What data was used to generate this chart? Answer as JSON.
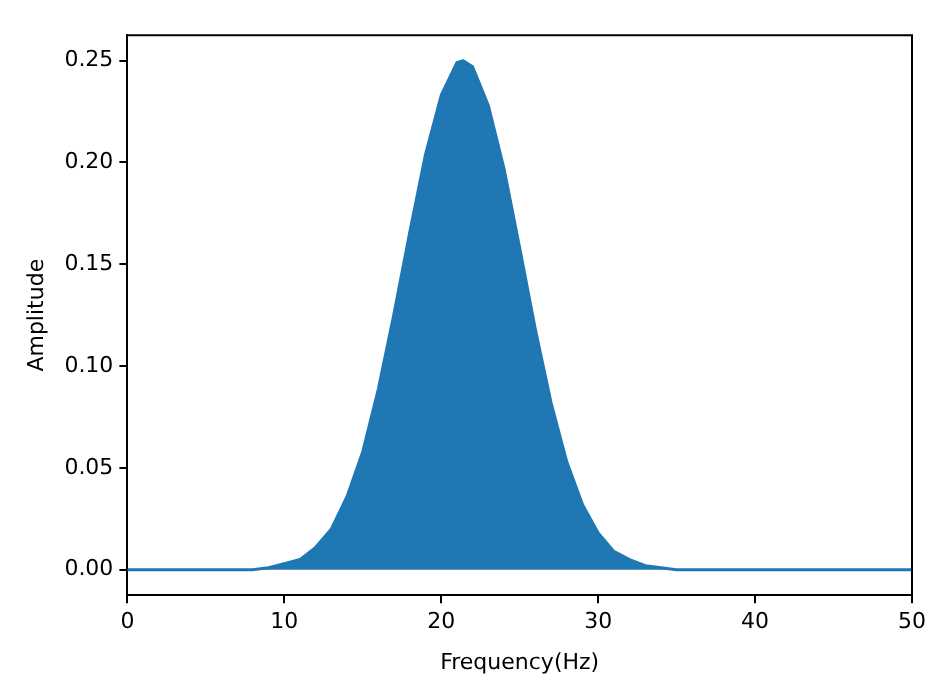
{
  "chart_data": {
    "type": "area",
    "xlabel": "Frequency(Hz)",
    "ylabel": "Amplitude",
    "x": [
      0,
      1,
      2,
      3,
      4,
      5,
      6,
      7,
      8,
      9,
      10,
      11,
      12,
      13,
      14,
      15,
      16,
      17,
      18,
      19,
      20,
      21,
      21.4,
      22,
      23,
      24,
      25,
      26,
      27,
      28,
      29,
      30,
      31,
      32,
      33,
      34,
      35,
      36,
      37,
      38,
      39,
      40,
      41,
      42,
      43,
      44,
      45,
      46,
      47,
      48,
      49,
      50
    ],
    "series": [
      {
        "color": "#1f77b4",
        "values": [
          0,
          0,
          0,
          0,
          0,
          0,
          0,
          0,
          0,
          0.001,
          0.003,
          0.005,
          0.011,
          0.02,
          0.036,
          0.058,
          0.089,
          0.126,
          0.166,
          0.204,
          0.233,
          0.249,
          0.25,
          0.247,
          0.228,
          0.197,
          0.158,
          0.118,
          0.082,
          0.053,
          0.032,
          0.018,
          0.009,
          0.005,
          0.002,
          0.001,
          0,
          0,
          0,
          0,
          0,
          0,
          0,
          0,
          0,
          0,
          0,
          0,
          0,
          0,
          0,
          0
        ]
      }
    ],
    "xlim": [
      0,
      50
    ],
    "xticks": [
      0,
      10,
      20,
      30,
      40,
      50
    ],
    "ylim": [
      -0.0125,
      0.2625
    ],
    "yticks": [
      {
        "value": 0,
        "label": "0.00"
      },
      {
        "value": 0.05,
        "label": "0.05"
      },
      {
        "value": 0.1,
        "label": "0.10"
      },
      {
        "value": 0.15,
        "label": "0.15"
      },
      {
        "value": 0.2,
        "label": "0.20"
      },
      {
        "value": 0.25,
        "label": "0.25"
      }
    ],
    "grid": false,
    "legend": false
  }
}
